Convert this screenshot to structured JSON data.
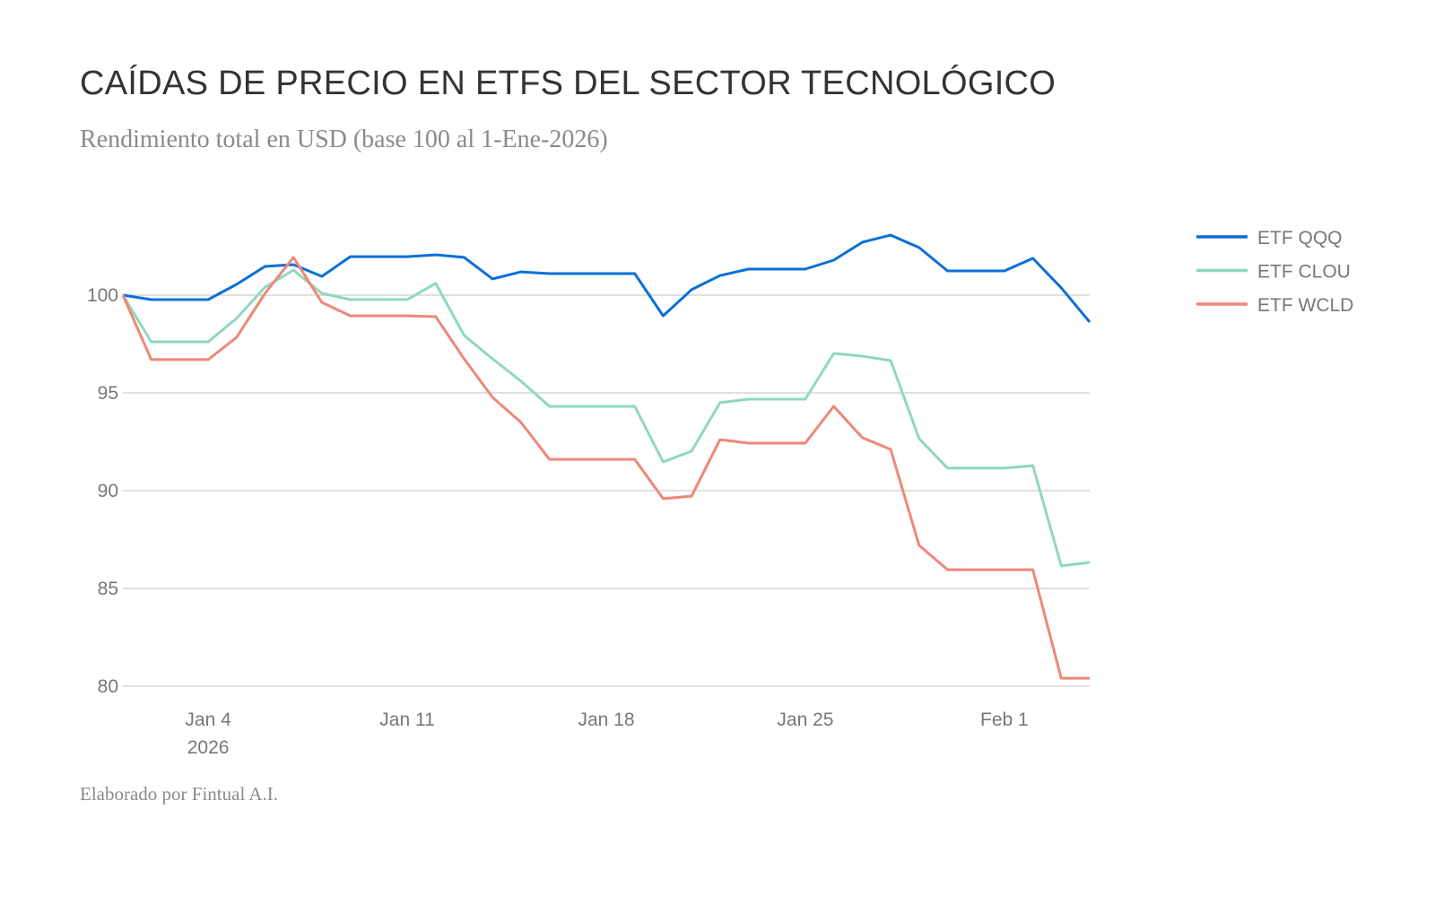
{
  "title": "CAÍDAS DE PRECIO EN ETFS DEL SECTOR TECNOLÓGICO",
  "subtitle": "Rendimiento total en USD (base 100 al 1-Ene-2026)",
  "footer": "Elaborado por Fintual A.I.",
  "chart_data": {
    "type": "line",
    "title": "CAÍDAS DE PRECIO EN ETFS DEL SECTOR TECNOLÓGICO",
    "xlabel": "",
    "ylabel": "",
    "x_start": "2026-01-01",
    "x_days": [
      0,
      1,
      2,
      3,
      4,
      5,
      6,
      7,
      8,
      9,
      10,
      11,
      12,
      13,
      14,
      15,
      16,
      17,
      18,
      19,
      20,
      21,
      22,
      23,
      24,
      25,
      26,
      27,
      28,
      29,
      30,
      31,
      32,
      33,
      34
    ],
    "xlim_days": [
      0,
      34
    ],
    "x_ticks": [
      {
        "day": 3,
        "label": "Jan 4",
        "sublabel": "2026"
      },
      {
        "day": 10,
        "label": "Jan 11"
      },
      {
        "day": 17,
        "label": "Jan 18"
      },
      {
        "day": 24,
        "label": "Jan 25"
      },
      {
        "day": 31,
        "label": "Feb 1"
      }
    ],
    "ylim": [
      80,
      104
    ],
    "y_ticks": [
      80,
      85,
      90,
      95,
      100
    ],
    "grid": true,
    "legend_position": "right",
    "series": [
      {
        "name": "ETF QQQ",
        "color": "#0a6fd9",
        "values": [
          100,
          99.77,
          99.77,
          99.77,
          100.55,
          101.47,
          101.56,
          100.96,
          101.97,
          101.97,
          101.97,
          102.06,
          101.93,
          100.83,
          101.19,
          101.1,
          101.1,
          101.1,
          101.1,
          98.94,
          100.28,
          101.0,
          101.33,
          101.33,
          101.33,
          101.79,
          102.7,
          103.07,
          102.43,
          101.24,
          101.24,
          101.24,
          101.88,
          100.37,
          98.62
        ]
      },
      {
        "name": "ETF CLOU",
        "color": "#8fd8bd",
        "values": [
          100,
          97.61,
          97.61,
          97.61,
          98.81,
          100.41,
          101.28,
          100.09,
          99.77,
          99.77,
          99.77,
          100.6,
          97.94,
          96.74,
          95.6,
          94.31,
          94.31,
          94.31,
          94.31,
          91.47,
          92.02,
          94.5,
          94.68,
          94.68,
          94.68,
          97.02,
          96.88,
          96.65,
          92.66,
          91.15,
          91.15,
          91.15,
          91.28,
          86.15,
          86.33
        ]
      },
      {
        "name": "ETF WCLD",
        "color": "#ef8778",
        "values": [
          100,
          96.7,
          96.7,
          96.7,
          97.84,
          100.09,
          101.93,
          99.63,
          98.94,
          98.94,
          98.94,
          98.9,
          96.74,
          94.77,
          93.49,
          91.6,
          91.6,
          91.6,
          91.6,
          89.59,
          89.72,
          92.61,
          92.43,
          92.43,
          92.43,
          94.31,
          92.71,
          92.11,
          87.2,
          85.96,
          85.96,
          85.96,
          85.96,
          80.41,
          80.41
        ]
      }
    ]
  }
}
